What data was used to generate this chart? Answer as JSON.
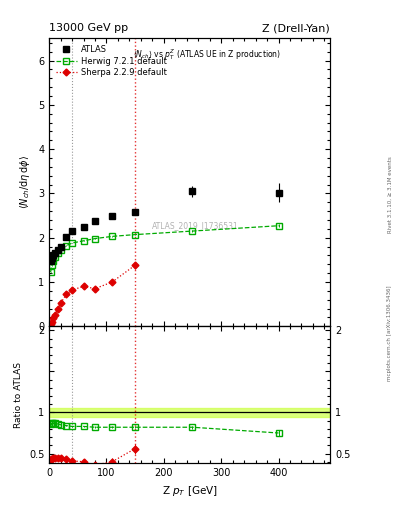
{
  "title_left": "13000 GeV pp",
  "title_right": "Z (Drell-Yan)",
  "subtitle": "<N_{ch}> vs p_{T}^{Z} (ATLAS UE in Z production)",
  "ylabel_main": "<N_{ch}/d#eta d#phi>",
  "ylabel_ratio": "Ratio to ATLAS",
  "xlabel": "Z p_{T} [GeV]",
  "watermark": "ATLAS_2019_I1736531",
  "right_label": "mcplots.cern.ch [arXiv:1306.3436]",
  "right_label2": "Rivet 3.1.10, ≥ 3.1M events",
  "atlas_x": [
    2.5,
    5,
    7.5,
    10,
    15,
    20,
    30,
    40,
    60,
    80,
    110,
    150,
    250,
    400
  ],
  "atlas_y": [
    1.48,
    1.55,
    1.62,
    1.65,
    1.72,
    1.8,
    2.02,
    2.15,
    2.25,
    2.38,
    2.5,
    2.58,
    3.05,
    3.02
  ],
  "atlas_yerr": [
    0.04,
    0.04,
    0.04,
    0.04,
    0.04,
    0.04,
    0.05,
    0.05,
    0.05,
    0.06,
    0.06,
    0.07,
    0.12,
    0.22
  ],
  "herwig_x": [
    2.5,
    5,
    7.5,
    10,
    15,
    20,
    30,
    40,
    60,
    80,
    110,
    150,
    250,
    400
  ],
  "herwig_y": [
    1.22,
    1.38,
    1.48,
    1.56,
    1.65,
    1.72,
    1.82,
    1.88,
    1.93,
    1.98,
    2.03,
    2.07,
    2.15,
    2.27
  ],
  "herwig_yerr": [
    0.01,
    0.01,
    0.01,
    0.01,
    0.01,
    0.01,
    0.01,
    0.01,
    0.01,
    0.01,
    0.01,
    0.01,
    0.02,
    0.03
  ],
  "sherpa_x": [
    2.5,
    5,
    7.5,
    10,
    15,
    20,
    30,
    40,
    60,
    80,
    110,
    150
  ],
  "sherpa_y": [
    0.05,
    0.1,
    0.18,
    0.25,
    0.38,
    0.52,
    0.72,
    0.82,
    0.9,
    0.85,
    1.0,
    1.38
  ],
  "sherpa_yerr": [
    0.01,
    0.01,
    0.02,
    0.02,
    0.03,
    0.03,
    0.04,
    0.05,
    0.05,
    0.05,
    0.06,
    0.08
  ],
  "herwig_ratio_x": [
    2.5,
    5,
    7.5,
    10,
    15,
    20,
    30,
    40,
    60,
    80,
    110,
    150,
    250,
    400
  ],
  "herwig_ratio_y": [
    0.86,
    0.87,
    0.87,
    0.87,
    0.86,
    0.85,
    0.84,
    0.83,
    0.83,
    0.82,
    0.82,
    0.82,
    0.82,
    0.75
  ],
  "herwig_ratio_yerr": [
    0.01,
    0.01,
    0.01,
    0.01,
    0.01,
    0.01,
    0.01,
    0.01,
    0.01,
    0.01,
    0.01,
    0.01,
    0.02,
    0.04
  ],
  "sherpa_ratio_x": [
    2.5,
    5,
    7.5,
    10,
    15,
    20,
    30,
    40,
    60,
    80,
    110,
    150
  ],
  "sherpa_ratio_y": [
    0.43,
    0.43,
    0.44,
    0.44,
    0.44,
    0.44,
    0.43,
    0.41,
    0.4,
    0.36,
    0.4,
    0.56
  ],
  "sherpa_ratio_yerr": [
    0.01,
    0.01,
    0.01,
    0.01,
    0.02,
    0.02,
    0.02,
    0.02,
    0.03,
    0.03,
    0.04,
    0.06
  ],
  "atlas_band_err": 0.06,
  "vline1": 40,
  "vline2": 150,
  "main_ylim": [
    0.0,
    6.5
  ],
  "main_yticks": [
    0,
    1,
    2,
    3,
    4,
    5,
    6
  ],
  "ratio_ylim": [
    0.38,
    2.05
  ],
  "ratio_yticks": [
    0.5,
    1.0,
    1.5,
    2.0
  ],
  "xlim": [
    0,
    490
  ],
  "atlas_color": "#000000",
  "herwig_color": "#00aa00",
  "sherpa_color": "#dd0000",
  "band_fill_color": "#ccff44",
  "band_edge_color": "#88cc00"
}
